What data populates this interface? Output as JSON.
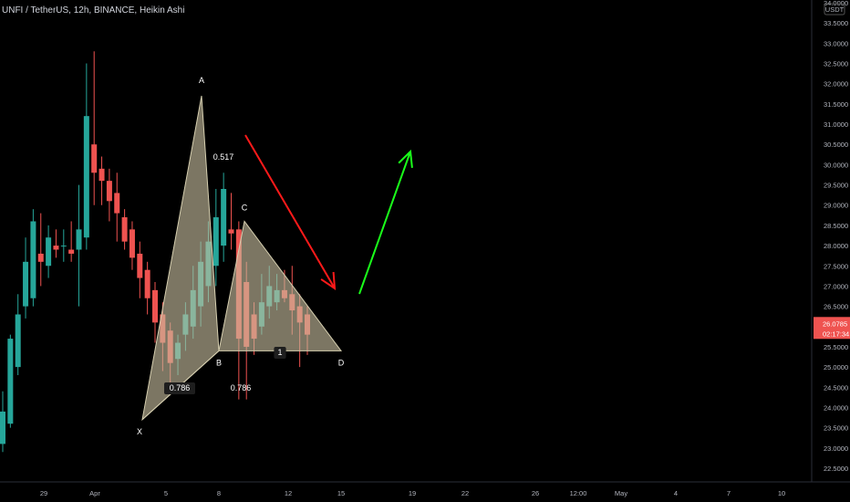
{
  "header": {
    "title": "UNFI / TetherUS, 12h, BINANCE, Heikin Ashi"
  },
  "colors": {
    "up": "#26a69a",
    "down": "#ef5350",
    "pattern_fill": "#c8bfa0",
    "arrow_down": "#ff1a1a",
    "arrow_up": "#1aff1a",
    "price_label_bg": "#ef5350",
    "axis_text": "#b2b5be"
  },
  "price_axis": {
    "currency_label": "USDT",
    "ticks": [
      "34.0000",
      "33.5000",
      "33.0000",
      "32.5000",
      "32.0000",
      "31.5000",
      "31.0000",
      "30.5000",
      "30.0000",
      "29.5000",
      "29.0000",
      "28.5000",
      "28.0000",
      "27.5000",
      "27.0000",
      "26.5000",
      "26.0000",
      "25.5000",
      "25.0000",
      "24.5000",
      "24.0000",
      "23.5000",
      "23.0000",
      "22.5000"
    ],
    "current_price": "26.0785",
    "countdown": "02:17:34"
  },
  "time_axis": {
    "ticks": [
      "29",
      "Apr",
      "5",
      "8",
      "12",
      "15",
      "19",
      "22",
      "26",
      "12:00",
      "May",
      "4",
      "7",
      "10"
    ]
  },
  "pattern": {
    "points": [
      {
        "label": "X",
        "price": 23.7
      },
      {
        "label": "A",
        "price": 31.7
      },
      {
        "label": "B",
        "price": 25.4
      },
      {
        "label": "C",
        "price": 28.6
      },
      {
        "label": "D",
        "price": 25.4
      }
    ],
    "ratios": {
      "xab": "0.517",
      "abc_left": "0.786",
      "abc_right": "0.786",
      "bcd": "1"
    }
  },
  "chart_data": {
    "type": "candlestick",
    "title": "UNFI / TetherUS, 12h, BINANCE, Heikin Ashi",
    "ylim": [
      22.5,
      34.0
    ],
    "candles": [
      {
        "o": 23.1,
        "h": 24.4,
        "l": 22.9,
        "c": 23.9
      },
      {
        "o": 23.6,
        "h": 25.8,
        "l": 23.5,
        "c": 25.7
      },
      {
        "o": 25.0,
        "h": 26.8,
        "l": 24.8,
        "c": 26.3
      },
      {
        "o": 26.5,
        "h": 28.2,
        "l": 26.2,
        "c": 27.6
      },
      {
        "o": 26.7,
        "h": 28.9,
        "l": 26.5,
        "c": 28.6
      },
      {
        "o": 27.8,
        "h": 28.8,
        "l": 27.0,
        "c": 27.6
      },
      {
        "o": 27.5,
        "h": 28.5,
        "l": 27.2,
        "c": 28.2
      },
      {
        "o": 28.0,
        "h": 28.4,
        "l": 27.7,
        "c": 27.9
      },
      {
        "o": 28.0,
        "h": 28.4,
        "l": 27.6,
        "c": 28.0
      },
      {
        "o": 27.9,
        "h": 28.6,
        "l": 27.6,
        "c": 27.8
      },
      {
        "o": 27.9,
        "h": 29.5,
        "l": 26.5,
        "c": 28.4
      },
      {
        "o": 28.2,
        "h": 32.5,
        "l": 27.9,
        "c": 31.2
      },
      {
        "o": 30.5,
        "h": 32.8,
        "l": 29.0,
        "c": 29.8
      },
      {
        "o": 29.9,
        "h": 30.2,
        "l": 29.0,
        "c": 29.6
      },
      {
        "o": 29.6,
        "h": 29.9,
        "l": 28.6,
        "c": 29.1
      },
      {
        "o": 29.3,
        "h": 29.8,
        "l": 28.1,
        "c": 28.8
      },
      {
        "o": 28.7,
        "h": 28.9,
        "l": 27.9,
        "c": 28.1
      },
      {
        "o": 28.4,
        "h": 28.6,
        "l": 27.4,
        "c": 27.7
      },
      {
        "o": 27.8,
        "h": 28.1,
        "l": 26.7,
        "c": 27.2
      },
      {
        "o": 27.4,
        "h": 27.6,
        "l": 26.3,
        "c": 26.7
      },
      {
        "o": 26.9,
        "h": 27.1,
        "l": 25.6,
        "c": 26.1
      },
      {
        "o": 26.3,
        "h": 26.6,
        "l": 24.9,
        "c": 25.6
      },
      {
        "o": 25.9,
        "h": 26.1,
        "l": 24.6,
        "c": 25.1
      },
      {
        "o": 25.2,
        "h": 25.8,
        "l": 24.8,
        "c": 25.6
      },
      {
        "o": 25.8,
        "h": 26.6,
        "l": 25.4,
        "c": 26.3
      },
      {
        "o": 26.0,
        "h": 27.5,
        "l": 25.7,
        "c": 26.9
      },
      {
        "o": 26.5,
        "h": 28.1,
        "l": 26.0,
        "c": 27.6
      },
      {
        "o": 27.0,
        "h": 28.6,
        "l": 26.6,
        "c": 28.1
      },
      {
        "o": 27.5,
        "h": 29.4,
        "l": 27.0,
        "c": 28.7
      },
      {
        "o": 28.0,
        "h": 29.8,
        "l": 27.6,
        "c": 29.4
      },
      {
        "o": 28.4,
        "h": 29.3,
        "l": 27.9,
        "c": 28.3
      },
      {
        "o": 28.4,
        "h": 28.6,
        "l": 24.2,
        "c": 25.7
      },
      {
        "o": 27.1,
        "h": 27.6,
        "l": 24.2,
        "c": 25.5
      },
      {
        "o": 26.3,
        "h": 26.6,
        "l": 25.3,
        "c": 25.7
      },
      {
        "o": 26.0,
        "h": 27.3,
        "l": 25.8,
        "c": 26.6
      },
      {
        "o": 26.5,
        "h": 27.5,
        "l": 26.2,
        "c": 27.0
      },
      {
        "o": 26.6,
        "h": 27.3,
        "l": 26.4,
        "c": 26.9
      },
      {
        "o": 26.9,
        "h": 27.4,
        "l": 26.6,
        "c": 26.7
      },
      {
        "o": 26.8,
        "h": 27.5,
        "l": 25.8,
        "c": 26.4
      },
      {
        "o": 26.5,
        "h": 26.8,
        "l": 25.0,
        "c": 26.1
      },
      {
        "o": 26.3,
        "h": 26.5,
        "l": 25.3,
        "c": 25.8
      }
    ],
    "current_price": 26.0785
  }
}
